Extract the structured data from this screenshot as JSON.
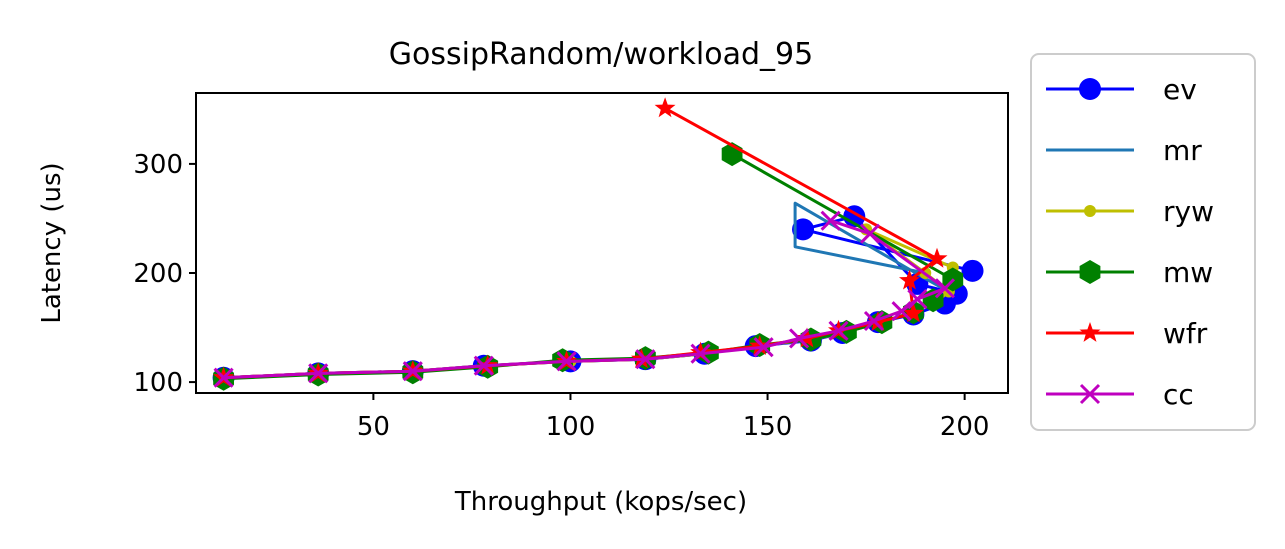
{
  "chart_data": {
    "type": "line",
    "title": "GossipRandom/workload_95",
    "xlabel": "Throughput (kops/sec)",
    "ylabel": "Latency (us)",
    "xlim": [
      5,
      211
    ],
    "ylim": [
      90,
      365
    ],
    "xticks": [
      50,
      100,
      150,
      200
    ],
    "yticks": [
      100,
      200,
      300
    ],
    "grid": false,
    "legend_position": "outside-right",
    "series": [
      {
        "name": "ev",
        "color": "#0000ff",
        "marker": "circle",
        "x": [
          12,
          36,
          60,
          78,
          100,
          119,
          134,
          147,
          161,
          169,
          178,
          187,
          195,
          198,
          188,
          172,
          159,
          202
        ],
        "y": [
          104,
          108,
          110,
          115,
          119,
          121,
          126,
          133,
          138,
          145,
          155,
          162,
          172,
          181,
          190,
          252,
          240,
          202
        ]
      },
      {
        "name": "mr",
        "color": "#1f77b4",
        "marker": "none",
        "x": [
          12,
          36,
          60,
          78,
          100,
          119,
          134,
          147,
          161,
          169,
          178,
          186,
          193,
          196,
          190,
          157,
          157,
          190
        ],
        "y": [
          104,
          108,
          110,
          115,
          119,
          121,
          126,
          133,
          139,
          145,
          154,
          163,
          174,
          183,
          195,
          264,
          224,
          200
        ]
      },
      {
        "name": "ryw",
        "color": "#bfbf00",
        "marker": "smallcircle",
        "x": [
          12,
          36,
          60,
          78,
          100,
          119,
          134,
          147,
          161,
          169,
          178,
          186,
          193,
          196,
          190,
          175,
          197
        ],
        "y": [
          104,
          108,
          110,
          115,
          119,
          121,
          126,
          133,
          139,
          145,
          154,
          163,
          174,
          183,
          200,
          240,
          205
        ]
      },
      {
        "name": "mw",
        "color": "#008000",
        "marker": "hexagon",
        "x": [
          12,
          36,
          60,
          79,
          98,
          119,
          135,
          148,
          161,
          170,
          179,
          187,
          192,
          197,
          141
        ],
        "y": [
          103,
          107,
          109,
          114,
          120,
          122,
          127,
          134,
          139,
          146,
          155,
          164,
          175,
          194,
          309
        ]
      },
      {
        "name": "wfr",
        "color": "#ff0000",
        "marker": "star",
        "x": [
          12,
          36,
          60,
          79,
          99,
          118,
          133,
          148,
          160,
          168,
          178,
          187,
          186,
          193,
          124
        ],
        "y": [
          104,
          108,
          110,
          115,
          119,
          121,
          127,
          133,
          140,
          147,
          155,
          163,
          193,
          213,
          351
        ]
      },
      {
        "name": "cc",
        "color": "#bf00bf",
        "marker": "x",
        "x": [
          12,
          36,
          60,
          78,
          99,
          119,
          133,
          149,
          158,
          168,
          177,
          184,
          188,
          195,
          176,
          166
        ],
        "y": [
          104,
          108,
          110,
          115,
          119,
          121,
          126,
          132,
          140,
          147,
          156,
          165,
          176,
          186,
          236,
          248
        ]
      }
    ]
  }
}
